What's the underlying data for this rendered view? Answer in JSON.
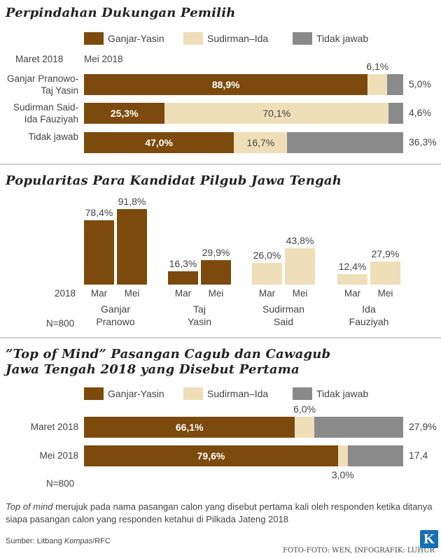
{
  "colors": {
    "ganjar_yasin": "#7b4a0c",
    "sudirman_ida": "#eedfb8",
    "tidak_jawab": "#8a8a8a"
  },
  "legend": [
    "Ganjar-Yasin",
    "Sudirman–Ida",
    "Tidak jawab"
  ],
  "chart_data": [
    {
      "type": "bar",
      "orientation": "horizontal-stacked",
      "title": "Perpindahan Dukungan Pemilih",
      "col_label_left": "Maret 2018",
      "col_label_right": "Mei 2018",
      "categories": [
        [
          "Ganjar Pranowo-",
          "Taj Yasin"
        ],
        [
          "Sudirman Said-",
          "Ida Fauziyah"
        ],
        [
          "Tidak jawab"
        ]
      ],
      "series": [
        {
          "name": "Ganjar-Yasin",
          "values": [
            88.9,
            25.3,
            47.0
          ],
          "labels": [
            "88,9%",
            "25,3%",
            "47,0%"
          ]
        },
        {
          "name": "Sudirman–Ida",
          "values": [
            6.1,
            70.1,
            16.7
          ],
          "labels": [
            "6,1%",
            "70,1%",
            "16,7%"
          ]
        },
        {
          "name": "Tidak jawab",
          "values": [
            5.0,
            4.6,
            36.3
          ],
          "labels": [
            "5,0%",
            "4,6%",
            "36,3%"
          ]
        }
      ]
    },
    {
      "type": "bar",
      "title": "Popularitas Para Kandidat Pilgub Jawa Tengah",
      "year_label": "2018",
      "n_label": "N=800",
      "x_labels": [
        "Mar",
        "Mei"
      ],
      "groups": [
        {
          "name": [
            "Ganjar",
            "Pranowo"
          ],
          "values": [
            78.4,
            91.8
          ],
          "labels": [
            "78,4%",
            "91,8%"
          ]
        },
        {
          "name": [
            "Taj",
            "Yasin"
          ],
          "values": [
            16.3,
            29.9
          ],
          "labels": [
            "16,3%",
            "29,9%"
          ]
        },
        {
          "name": [
            "Sudirman",
            "Said"
          ],
          "values": [
            26.0,
            43.8
          ],
          "labels": [
            "26,0%",
            "43,8%"
          ]
        },
        {
          "name": [
            "Ida",
            "Fauziyah"
          ],
          "values": [
            12.4,
            27.9
          ],
          "labels": [
            "12,4%",
            "27,9%"
          ]
        }
      ]
    },
    {
      "type": "bar",
      "orientation": "horizontal-stacked",
      "title": [
        "”Top of Mind” Pasangan Cagub dan Cawagub",
        "Jawa Tengah 2018 yang Disebut Pertama"
      ],
      "n_label": "N=800",
      "categories": [
        "Maret 2018",
        "Mei 2018"
      ],
      "series": [
        {
          "name": "Ganjar-Yasin",
          "values": [
            66.1,
            79.6
          ],
          "labels": [
            "66,1%",
            "79,6%"
          ]
        },
        {
          "name": "Sudirman–Ida",
          "values": [
            6.0,
            3.0
          ],
          "labels": [
            "6,0%",
            "3,0%"
          ]
        },
        {
          "name": "Tidak jawab",
          "values": [
            27.9,
            17.4
          ],
          "labels": [
            "27,9%",
            "17,4"
          ]
        }
      ]
    }
  ],
  "note": {
    "italic": "Top of mind",
    "rest": " merujuk pada nama pasangan calon yang disebut pertama kali oleh responden ketika ditanya siapa pasangan calon yang responden ketahui di Pilkada Jateng 2018"
  },
  "footer": {
    "source_prefix": "Sumber: Litbang ",
    "source_italic": "Kompas",
    "source_suffix": "/RFC",
    "credit": "FOTO-FOTO: WEN, INFOGRAFIK: LUHUR",
    "logo": "K"
  }
}
